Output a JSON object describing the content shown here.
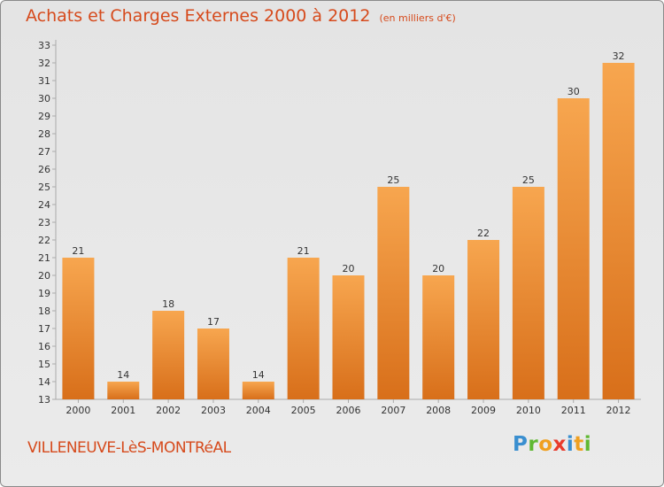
{
  "title": "Achats et Charges Externes 2000 à 2012",
  "unit": "(en milliers d'€)",
  "city": "VILLENEUVE-LèS-MONTRéAL",
  "logo": {
    "letters": [
      "P",
      "r",
      "o",
      "x",
      "i",
      "t",
      "i"
    ],
    "colors": [
      "#3a8fd0",
      "#5fb832",
      "#f0a020",
      "#e83b2c",
      "#3a8fd0",
      "#f0a020",
      "#5fb832"
    ]
  },
  "colors": {
    "bar_top": "#f7a64f",
    "bar_bottom": "#d86f1a",
    "accent": "#d64a1c",
    "axis": "#aaaaaa",
    "text": "#333333"
  },
  "chart_data": {
    "type": "bar",
    "title": "Achats et Charges Externes 2000 à 2012",
    "categories": [
      "2000",
      "2001",
      "2002",
      "2003",
      "2004",
      "2005",
      "2006",
      "2007",
      "2008",
      "2009",
      "2010",
      "2011",
      "2012"
    ],
    "values": [
      21,
      14,
      18,
      17,
      14,
      21,
      20,
      25,
      20,
      22,
      25,
      30,
      32
    ],
    "ylim": [
      13,
      33
    ],
    "yticks": [
      13,
      14,
      15,
      16,
      17,
      18,
      19,
      20,
      21,
      22,
      23,
      24,
      25,
      26,
      27,
      28,
      29,
      30,
      31,
      32,
      33
    ],
    "grid": false
  }
}
